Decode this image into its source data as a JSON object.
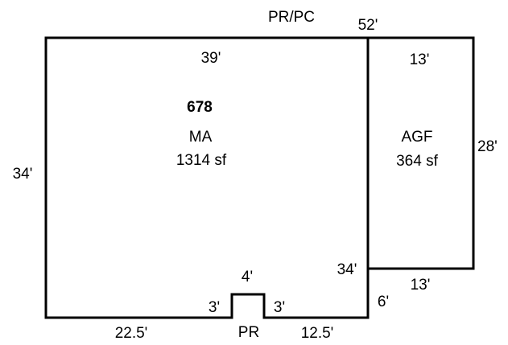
{
  "sketch": {
    "top_label": "PR/PC",
    "bottom_label": "PR"
  },
  "main_area": {
    "id": "678",
    "name": "MA",
    "area": "1314 sf"
  },
  "garage": {
    "name": "AGF",
    "area": "364 sf"
  },
  "dimensions": {
    "ma_top_right": "52'",
    "ma_top": "39'",
    "ma_left": "34'",
    "ma_right_lower": "34'",
    "ma_bottom_left": "22.5'",
    "ma_bottom_right": "12.5'",
    "ma_step": "6'",
    "notch_top": "4'",
    "notch_left": "3'",
    "notch_right": "3'",
    "agf_top": "13'",
    "agf_right": "28'",
    "agf_bottom": "13'"
  }
}
